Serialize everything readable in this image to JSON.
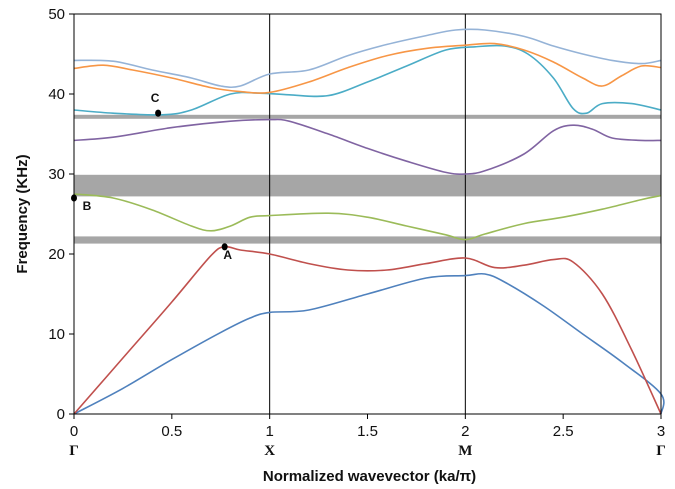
{
  "chart_data": {
    "type": "line",
    "title": "",
    "xlabel": "Normalized wavevector (ka/π)",
    "ylabel": "Frequency (KHz)",
    "xlim": [
      0,
      3
    ],
    "ylim": [
      0,
      50
    ],
    "x_ticks": [
      0,
      0.5,
      1,
      1.5,
      2,
      2.5,
      3
    ],
    "x_tick_labels": [
      "0",
      "0.5",
      "1",
      "1.5",
      "2",
      "2.5",
      "3"
    ],
    "y_ticks": [
      0,
      10,
      20,
      30,
      40,
      50
    ],
    "y_tick_labels": [
      "0",
      "10",
      "20",
      "30",
      "40",
      "50"
    ],
    "symmetry_points": [
      {
        "x": 0,
        "label": "Γ"
      },
      {
        "x": 1,
        "label": "X"
      },
      {
        "x": 2,
        "label": "M"
      },
      {
        "x": 3,
        "label": "Γ"
      }
    ],
    "band_gaps": [
      {
        "from": 21.3,
        "to": 22.2,
        "color": "#a6a6a6"
      },
      {
        "from": 27.2,
        "to": 29.9,
        "color": "#a6a6a6"
      },
      {
        "from": 36.9,
        "to": 37.4,
        "color": "#a6a6a6"
      }
    ],
    "series": [
      {
        "color": "#4f81bd",
        "points": [
          [
            0,
            0
          ],
          [
            0.25,
            3.2
          ],
          [
            0.5,
            6.8
          ],
          [
            0.75,
            10.2
          ],
          [
            0.9,
            12.0
          ],
          [
            1.0,
            12.7
          ],
          [
            1.2,
            13.0
          ],
          [
            1.5,
            15.0
          ],
          [
            1.8,
            17.0
          ],
          [
            2.0,
            17.3
          ],
          [
            2.1,
            17.5
          ],
          [
            2.2,
            16.5
          ],
          [
            2.4,
            13.5
          ],
          [
            2.6,
            10.0
          ],
          [
            2.8,
            6.5
          ],
          [
            3.0,
            2.5
          ],
          [
            3.0,
            0
          ]
        ]
      },
      {
        "color": "#c0504d",
        "points": [
          [
            0,
            0
          ],
          [
            0.25,
            7.0
          ],
          [
            0.5,
            14.0
          ],
          [
            0.7,
            19.8
          ],
          [
            0.77,
            20.9
          ],
          [
            0.85,
            20.5
          ],
          [
            1.0,
            20.0
          ],
          [
            1.2,
            18.8
          ],
          [
            1.4,
            18.0
          ],
          [
            1.6,
            18.0
          ],
          [
            1.8,
            18.8
          ],
          [
            2.0,
            19.5
          ],
          [
            2.15,
            18.3
          ],
          [
            2.3,
            18.6
          ],
          [
            2.45,
            19.3
          ],
          [
            2.55,
            19.0
          ],
          [
            2.7,
            15.0
          ],
          [
            2.85,
            8.0
          ],
          [
            3.0,
            0
          ]
        ]
      },
      {
        "color": "#9bbb59",
        "points": [
          [
            0,
            27.5
          ],
          [
            0.2,
            27.0
          ],
          [
            0.4,
            25.5
          ],
          [
            0.6,
            23.5
          ],
          [
            0.7,
            22.9
          ],
          [
            0.8,
            23.5
          ],
          [
            0.9,
            24.6
          ],
          [
            1.0,
            24.8
          ],
          [
            1.3,
            25.1
          ],
          [
            1.5,
            24.6
          ],
          [
            1.7,
            23.5
          ],
          [
            1.9,
            22.4
          ],
          [
            2.0,
            21.8
          ],
          [
            2.1,
            22.5
          ],
          [
            2.3,
            23.8
          ],
          [
            2.5,
            24.6
          ],
          [
            2.7,
            25.6
          ],
          [
            2.9,
            26.8
          ],
          [
            3.0,
            27.3
          ]
        ]
      },
      {
        "color": "#8064a2",
        "points": [
          [
            0,
            34.2
          ],
          [
            0.2,
            34.6
          ],
          [
            0.5,
            35.8
          ],
          [
            0.8,
            36.6
          ],
          [
            1.0,
            36.8
          ],
          [
            1.1,
            36.6
          ],
          [
            1.3,
            35.0
          ],
          [
            1.5,
            33.2
          ],
          [
            1.7,
            31.6
          ],
          [
            1.9,
            30.2
          ],
          [
            2.0,
            30.0
          ],
          [
            2.1,
            30.4
          ],
          [
            2.3,
            32.5
          ],
          [
            2.45,
            35.4
          ],
          [
            2.55,
            36.1
          ],
          [
            2.65,
            35.6
          ],
          [
            2.75,
            34.5
          ],
          [
            2.9,
            34.2
          ],
          [
            3.0,
            34.2
          ]
        ]
      },
      {
        "color": "#4bacc6",
        "points": [
          [
            0,
            38.0
          ],
          [
            0.2,
            37.6
          ],
          [
            0.45,
            37.4
          ],
          [
            0.6,
            38.0
          ],
          [
            0.8,
            40.0
          ],
          [
            0.95,
            40.1
          ],
          [
            1.1,
            39.9
          ],
          [
            1.3,
            39.8
          ],
          [
            1.5,
            41.5
          ],
          [
            1.7,
            43.5
          ],
          [
            1.9,
            45.5
          ],
          [
            2.05,
            45.9
          ],
          [
            2.2,
            46.0
          ],
          [
            2.32,
            45.0
          ],
          [
            2.45,
            42.0
          ],
          [
            2.55,
            38.2
          ],
          [
            2.62,
            37.6
          ],
          [
            2.7,
            38.8
          ],
          [
            2.85,
            38.8
          ],
          [
            3.0,
            38.0
          ]
        ]
      },
      {
        "color": "#f79646",
        "points": [
          [
            0,
            43.2
          ],
          [
            0.15,
            43.6
          ],
          [
            0.3,
            43.0
          ],
          [
            0.5,
            42.0
          ],
          [
            0.7,
            40.8
          ],
          [
            0.85,
            40.3
          ],
          [
            1.0,
            40.2
          ],
          [
            1.2,
            41.5
          ],
          [
            1.4,
            43.3
          ],
          [
            1.6,
            44.8
          ],
          [
            1.8,
            45.7
          ],
          [
            2.0,
            46.1
          ],
          [
            2.15,
            46.3
          ],
          [
            2.3,
            45.5
          ],
          [
            2.45,
            44.0
          ],
          [
            2.6,
            42.0
          ],
          [
            2.7,
            41.0
          ],
          [
            2.8,
            42.3
          ],
          [
            2.9,
            43.5
          ],
          [
            3.0,
            43.3
          ]
        ]
      },
      {
        "color": "#95b3d7",
        "points": [
          [
            0,
            44.2
          ],
          [
            0.2,
            44.1
          ],
          [
            0.4,
            43.0
          ],
          [
            0.6,
            42.0
          ],
          [
            0.75,
            41.0
          ],
          [
            0.85,
            41.0
          ],
          [
            1.0,
            42.5
          ],
          [
            1.2,
            43.0
          ],
          [
            1.4,
            44.8
          ],
          [
            1.6,
            46.2
          ],
          [
            1.8,
            47.3
          ],
          [
            1.95,
            48.0
          ],
          [
            2.1,
            48.0
          ],
          [
            2.3,
            47.2
          ],
          [
            2.45,
            46.0
          ],
          [
            2.6,
            45.0
          ],
          [
            2.75,
            44.2
          ],
          [
            2.9,
            43.8
          ],
          [
            3.0,
            44.2
          ]
        ]
      }
    ],
    "annotations": [
      {
        "label": "A",
        "x": 0.77,
        "y": 20.9,
        "label_dx": 3,
        "label_dy": 12
      },
      {
        "label": "B",
        "x": 0.0,
        "y": 27.0,
        "label_dx": 13,
        "label_dy": 12
      },
      {
        "label": "C",
        "x": 0.43,
        "y": 37.6,
        "label_dx": -3,
        "label_dy": -11
      }
    ]
  }
}
